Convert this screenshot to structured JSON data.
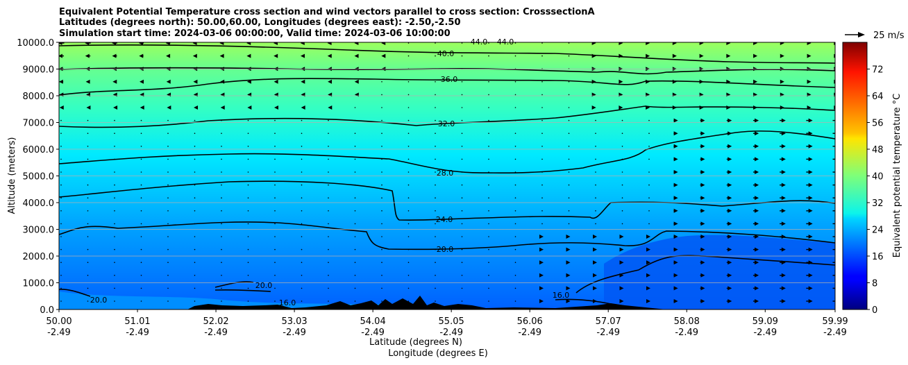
{
  "title_lines": [
    "Equivalent Potential Temperature cross section and wind vectors parallel to cross section: CrosssectionA",
    "Latitudes (degrees north): 50.00,60.00, Longitudes (degrees east): -2.50,-2.50",
    "Simulation start time: 2024-03-06 00:00:00, Valid time: 2024-03-06 10:00:00"
  ],
  "quiver_key": "25 m/s",
  "chart_data": {
    "type": "heatmap",
    "title": "Equivalent Potential Temperature cross section and wind vectors parallel to cross section: CrosssectionA",
    "xlabel": "Latitude (degrees N)",
    "xlabel2": "Longitude (degrees E)",
    "ylabel": "Altitude (meters)",
    "xlim": [
      50.0,
      59.99
    ],
    "ylim": [
      0,
      10000
    ],
    "x_ticks": [
      {
        "lat": "50.00",
        "lon": "-2.49"
      },
      {
        "lat": "51.01",
        "lon": "-2.49"
      },
      {
        "lat": "52.02",
        "lon": "-2.49"
      },
      {
        "lat": "53.03",
        "lon": "-2.49"
      },
      {
        "lat": "54.04",
        "lon": "-2.49"
      },
      {
        "lat": "55.05",
        "lon": "-2.49"
      },
      {
        "lat": "56.06",
        "lon": "-2.49"
      },
      {
        "lat": "57.07",
        "lon": "-2.49"
      },
      {
        "lat": "58.08",
        "lon": "-2.49"
      },
      {
        "lat": "59.09",
        "lon": "-2.49"
      },
      {
        "lat": "59.99",
        "lon": "-2.49"
      }
    ],
    "y_ticks": [
      "0.0",
      "1000.0",
      "2000.0",
      "3000.0",
      "4000.0",
      "5000.0",
      "6000.0",
      "7000.0",
      "8000.0",
      "9000.0",
      "10000.0"
    ],
    "grid": "horizontal",
    "colorbar": {
      "label": "Equivalent potential temperature °C",
      "min": 0,
      "max": 80,
      "ticks": [
        "0",
        "8",
        "16",
        "24",
        "32",
        "40",
        "48",
        "56",
        "64",
        "72"
      ]
    },
    "contour_labels": [
      "40.0",
      "36.0",
      "32.0",
      "28.0",
      "24.0",
      "20.0",
      "16.0",
      "20.0",
      "16.0",
      "20.0",
      "44.0",
      "44.0"
    ],
    "wind_vectors": "easterly (leftward) aloft on southern half, westerly (rightward) on northern half, near-calm mid levels"
  }
}
